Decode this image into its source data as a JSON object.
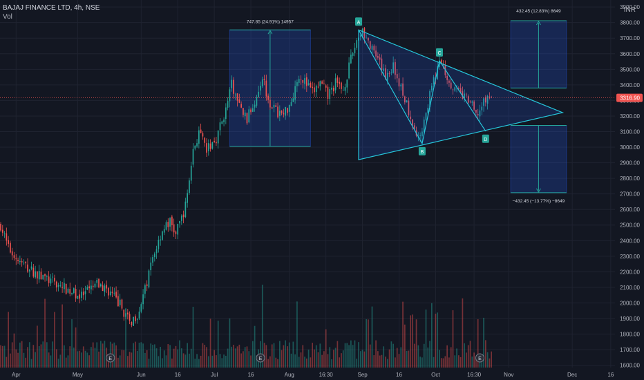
{
  "header": {
    "symbol_line": "BAJAJ FINANCE LTD, 4h, NSE",
    "indicator": "Vol",
    "currency": "INR"
  },
  "price_tag": "3316.90",
  "chart_data": {
    "type": "candlestick",
    "symbol": "BAJAJ FINANCE LTD",
    "interval": "4h",
    "exchange": "NSE",
    "y_ticks": [
      "3900.00",
      "3800.00",
      "3700.00",
      "3600.00",
      "3500.00",
      "3400.00",
      "3300.00",
      "3200.00",
      "3100.00",
      "3000.00",
      "2900.00",
      "2800.00",
      "2700.00",
      "2600.00",
      "2500.00",
      "2400.00",
      "2300.00",
      "2200.00",
      "2100.00",
      "2000.00",
      "1900.00",
      "1800.00",
      "1700.00",
      "1600.00"
    ],
    "ylim": [
      1585,
      3945
    ],
    "x_ticks": [
      {
        "label": "Apr",
        "i": 8
      },
      {
        "label": "May",
        "i": 40
      },
      {
        "label": "Jun",
        "i": 73
      },
      {
        "label": "16",
        "i": 92
      },
      {
        "label": "Jul",
        "i": 111
      },
      {
        "label": "16",
        "i": 130
      },
      {
        "label": "Aug",
        "i": 150
      },
      {
        "label": "16:30",
        "i": 169
      },
      {
        "label": "Sep",
        "i": 188
      },
      {
        "label": "16",
        "i": 207
      },
      {
        "label": "Oct",
        "i": 226
      },
      {
        "label": "16:30",
        "i": 246
      },
      {
        "label": "Nov",
        "i": 264
      },
      {
        "label": "Dec",
        "i": 297
      },
      {
        "label": "16",
        "i": 317
      }
    ],
    "candle_count": 256,
    "close_path": [
      [
        0,
        2500
      ],
      [
        4,
        2350
      ],
      [
        10,
        2260
      ],
      [
        18,
        2190
      ],
      [
        26,
        2140
      ],
      [
        34,
        2090
      ],
      [
        42,
        2040
      ],
      [
        50,
        2120
      ],
      [
        56,
        2080
      ],
      [
        62,
        1990
      ],
      [
        67,
        1870
      ],
      [
        71,
        1930
      ],
      [
        75,
        2080
      ],
      [
        79,
        2290
      ],
      [
        84,
        2470
      ],
      [
        88,
        2520
      ],
      [
        91,
        2440
      ],
      [
        96,
        2620
      ],
      [
        100,
        2980
      ],
      [
        103,
        3090
      ],
      [
        107,
        2980
      ],
      [
        112,
        3060
      ],
      [
        117,
        3240
      ],
      [
        120,
        3400
      ],
      [
        124,
        3260
      ],
      [
        128,
        3180
      ],
      [
        132,
        3300
      ],
      [
        136,
        3460
      ],
      [
        139,
        3310
      ],
      [
        143,
        3230
      ],
      [
        147,
        3210
      ],
      [
        151,
        3300
      ],
      [
        155,
        3470
      ],
      [
        158,
        3420
      ],
      [
        162,
        3350
      ],
      [
        166,
        3410
      ],
      [
        170,
        3330
      ],
      [
        174,
        3410
      ],
      [
        178,
        3370
      ],
      [
        182,
        3560
      ],
      [
        185,
        3690
      ],
      [
        188,
        3760
      ],
      [
        192,
        3640
      ],
      [
        196,
        3550
      ],
      [
        200,
        3460
      ],
      [
        204,
        3520
      ],
      [
        208,
        3380
      ],
      [
        212,
        3240
      ],
      [
        215,
        3120
      ],
      [
        217,
        3040
      ],
      [
        220,
        3180
      ],
      [
        224,
        3380
      ],
      [
        227,
        3510
      ],
      [
        229,
        3550
      ],
      [
        232,
        3450
      ],
      [
        236,
        3370
      ],
      [
        240,
        3330
      ],
      [
        244,
        3290
      ],
      [
        247,
        3200
      ],
      [
        250,
        3260
      ],
      [
        253,
        3320
      ],
      [
        255,
        3316.9
      ]
    ],
    "volume_marks": [
      {
        "label": "E",
        "i": 57
      },
      {
        "label": "E",
        "i": 135
      },
      {
        "label": "E",
        "i": 249
      }
    ],
    "last_price": 3316.9,
    "annotations": {
      "range_box_jul": {
        "i0": 119,
        "i1": 161,
        "p0": 3005,
        "p1": 3753,
        "label": "747.85 (24.91%) 14957"
      },
      "target_up": {
        "i0": 265,
        "i1": 294,
        "p0": 3380,
        "p1": 3812,
        "label": "432.45 (12.83%) 8649"
      },
      "target_down": {
        "i0": 265,
        "i1": 294,
        "p0": 2708,
        "p1": 3140,
        "label": "−432.45 (−13.77%) −8649"
      },
      "triangle": [
        [
          186,
          3753
        ],
        [
          292,
          3222
        ],
        [
          186,
          2920
        ]
      ],
      "xabcd_points": [
        {
          "label": "A",
          "i": 186,
          "p": 3753
        },
        {
          "label": "B",
          "i": 219,
          "p": 3023
        },
        {
          "label": "C",
          "i": 228,
          "p": 3555
        },
        {
          "label": "D",
          "i": 252,
          "p": 3103
        }
      ]
    }
  }
}
